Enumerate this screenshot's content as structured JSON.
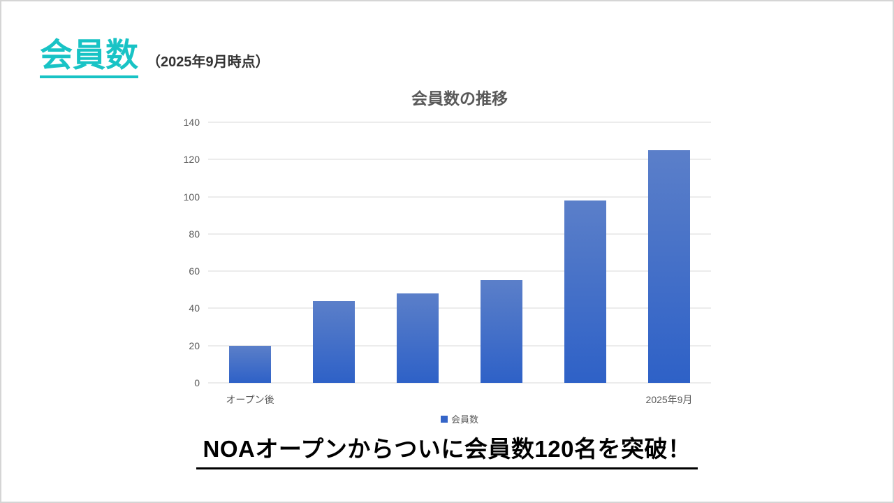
{
  "slide": {
    "title": "会員数",
    "title_suffix": "（2025年9月時点）",
    "headline": "NOAオープンからついに会員数120名を突破！"
  },
  "chart_data": {
    "type": "bar",
    "title": "会員数の推移",
    "categories": [
      "オープン後",
      "",
      "",
      "",
      "",
      "2025年9月"
    ],
    "values": [
      20,
      44,
      48,
      55,
      98,
      125
    ],
    "series": [
      {
        "name": "会員数",
        "values": [
          20,
          44,
          48,
          55,
          98,
          125
        ]
      }
    ],
    "legend": [
      "会員数"
    ],
    "legend_position": "bottom",
    "xlabel": "",
    "ylabel": "",
    "ylim": [
      0,
      140
    ],
    "ytick_step": 20,
    "grid": true
  },
  "colors": {
    "accent_teal": "#18C3C5",
    "bar_top": "#5B7FC9",
    "bar_bottom": "#2E61C7",
    "legend_swatch": "#3565C8",
    "axis_text": "#595959",
    "gridline": "#D9D9D9",
    "headline_text": "#000000"
  }
}
